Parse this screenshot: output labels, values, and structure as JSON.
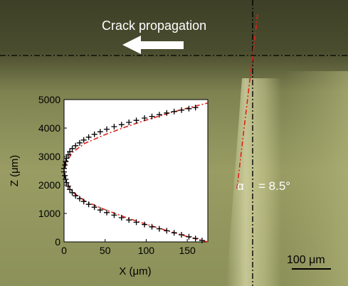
{
  "photo": {
    "arrow_label": "Crack propagation",
    "angle_symbol": "α",
    "angle_text": "= 8.5°",
    "scale_bar_label": "100 μm",
    "colors": {
      "background_top": "#3f4228",
      "background_mid": "#8e9258",
      "background_bright": "#c9c996",
      "arrow": "#ffffff",
      "fit_line": "#e0201a",
      "reference_line": "#000000"
    }
  },
  "chart_data": {
    "type": "scatter",
    "title": "",
    "xlabel": "X (μm)",
    "ylabel": "Z (μm)",
    "xlim": [
      0,
      175
    ],
    "ylim": [
      0,
      5000
    ],
    "xticks": [
      0,
      50,
      100,
      150
    ],
    "yticks": [
      0,
      1000,
      2000,
      3000,
      4000,
      5000
    ],
    "grid": false,
    "series": [
      {
        "marker": "+",
        "points": [
          [
            168,
            50
          ],
          [
            160,
            120
          ],
          [
            152,
            180
          ],
          [
            143,
            250
          ],
          [
            134,
            320
          ],
          [
            125,
            390
          ],
          [
            116,
            460
          ],
          [
            107,
            530
          ],
          [
            98,
            610
          ],
          [
            88,
            690
          ],
          [
            79,
            770
          ],
          [
            70,
            850
          ],
          [
            61,
            940
          ],
          [
            52,
            1030
          ],
          [
            44,
            1120
          ],
          [
            37,
            1220
          ],
          [
            30,
            1320
          ],
          [
            24,
            1420
          ],
          [
            19,
            1520
          ],
          [
            14,
            1620
          ],
          [
            10,
            1730
          ],
          [
            7,
            1840
          ],
          [
            5,
            1960
          ],
          [
            3,
            2080
          ],
          [
            2,
            2200
          ],
          [
            1,
            2330
          ],
          [
            0,
            2460
          ],
          [
            0,
            2580
          ],
          [
            1,
            2700
          ],
          [
            2,
            2820
          ],
          [
            3,
            2940
          ],
          [
            5,
            3060
          ],
          [
            7,
            3170
          ],
          [
            10,
            3280
          ],
          [
            14,
            3380
          ],
          [
            19,
            3480
          ],
          [
            24,
            3580
          ],
          [
            30,
            3680
          ],
          [
            37,
            3780
          ],
          [
            44,
            3870
          ],
          [
            52,
            3960
          ],
          [
            61,
            4050
          ],
          [
            70,
            4120
          ],
          [
            79,
            4200
          ],
          [
            88,
            4270
          ],
          [
            98,
            4350
          ],
          [
            107,
            4410
          ],
          [
            116,
            4470
          ],
          [
            125,
            4530
          ],
          [
            134,
            4580
          ],
          [
            143,
            4630
          ],
          [
            152,
            4680
          ],
          [
            160,
            4720
          ]
        ]
      }
    ],
    "fit_line": {
      "style": "dash-dot",
      "color": "#e0201a",
      "points": [
        [
          175,
          0
        ],
        [
          150,
          190
        ],
        [
          125,
          400
        ],
        [
          100,
          620
        ],
        [
          75,
          860
        ],
        [
          50,
          1130
        ],
        [
          25,
          1440
        ],
        [
          10,
          1760
        ],
        [
          3,
          2100
        ],
        [
          0,
          2450
        ],
        [
          3,
          2800
        ],
        [
          10,
          3140
        ],
        [
          25,
          3460
        ],
        [
          50,
          3770
        ],
        [
          75,
          4040
        ],
        [
          100,
          4280
        ],
        [
          125,
          4500
        ],
        [
          150,
          4700
        ],
        [
          175,
          4880
        ]
      ]
    }
  }
}
